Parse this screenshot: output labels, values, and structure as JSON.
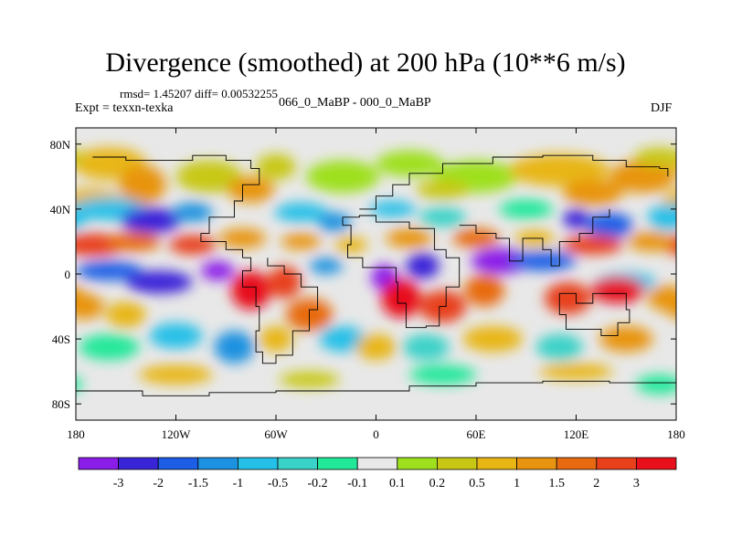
{
  "title": "Divergence (smoothed) at 200 hPa (10**6 m/s)",
  "stats_text": "rmsd= 1.45207 diff= 0.00532255",
  "expt_text": "Expt = texxn-texka",
  "comparison_text": "066_0_MaBP - 000_0_MaBP",
  "season": "DJF",
  "chart_data": {
    "type": "heatmap",
    "projection": "cylindrical-equidistant",
    "xlim": [
      -180,
      180
    ],
    "ylim": [
      -90,
      90
    ],
    "x_ticks": [
      {
        "value": -180,
        "label": "180"
      },
      {
        "value": -120,
        "label": "120W"
      },
      {
        "value": -60,
        "label": "60W"
      },
      {
        "value": 0,
        "label": "0"
      },
      {
        "value": 60,
        "label": "60E"
      },
      {
        "value": 120,
        "label": "120E"
      },
      {
        "value": 180,
        "label": "180"
      }
    ],
    "y_ticks": [
      {
        "value": 80,
        "label": "80N"
      },
      {
        "value": 40,
        "label": "40N"
      },
      {
        "value": 0,
        "label": "0"
      },
      {
        "value": -40,
        "label": "40S"
      },
      {
        "value": -80,
        "label": "80S"
      }
    ],
    "colorbar": {
      "colors": [
        "#8b1de8",
        "#3a24d8",
        "#1c5ee6",
        "#1d92e0",
        "#25c0e8",
        "#3ad2c8",
        "#22e89a",
        "#e8e8e8",
        "#9ee01e",
        "#c8c814",
        "#e8b614",
        "#e89410",
        "#e86a10",
        "#e8401a",
        "#e8101a"
      ],
      "labels": [
        "-3",
        "-2",
        "-1.5",
        "-1",
        "-0.5",
        "-0.2",
        "-0.1",
        "0.1",
        "0.2",
        "0.5",
        "1",
        "1.5",
        "2",
        "3"
      ]
    },
    "note": "Filled contour map of 200 hPa divergence difference; dominant negative (purple/blue) band near 20-40N over Pacific and Atlantic, strong positive (red) cells over tropical South America, Africa and Maritime Continent."
  }
}
